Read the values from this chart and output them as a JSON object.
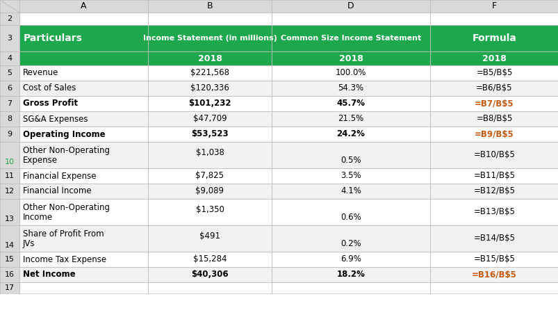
{
  "col_headers": [
    "A",
    "B",
    "D",
    "F"
  ],
  "col_header_row1": [
    "",
    "Income Statement (in millions)",
    "Common Size Income Statement",
    "Formula"
  ],
  "col_header_row2": [
    "Particulars",
    "2018",
    "2018",
    "2018"
  ],
  "rows": [
    {
      "row": 5,
      "col_a": "Revenue",
      "col_b": "$221,568",
      "col_d": "100.0%",
      "col_f": "=B5/B$5",
      "bold": false
    },
    {
      "row": 6,
      "col_a": "Cost of Sales",
      "col_b": "$120,336",
      "col_d": "54.3%",
      "col_f": "=B6/B$5",
      "bold": false
    },
    {
      "row": 7,
      "col_a": "Gross Profit",
      "col_b": "$101,232",
      "col_d": "45.7%",
      "col_f": "=B7/B$5",
      "bold": true
    },
    {
      "row": 8,
      "col_a": "SG&A Expenses",
      "col_b": "$47,709",
      "col_d": "21.5%",
      "col_f": "=B8/B$5",
      "bold": false
    },
    {
      "row": 9,
      "col_a": "Operating Income",
      "col_b": "$53,523",
      "col_d": "24.2%",
      "col_f": "=B9/B$5",
      "bold": true
    },
    {
      "row": 10,
      "col_a": "Other Non-Operating\nExpense",
      "col_b_top": "$1,038",
      "col_b_bot": "",
      "col_d": "0.5%",
      "col_f": "=B10/B$5",
      "bold": false,
      "multiline": true
    },
    {
      "row": 11,
      "col_a": "Financial Expense",
      "col_b": "$7,825",
      "col_d": "3.5%",
      "col_f": "=B11/B$5",
      "bold": false
    },
    {
      "row": 12,
      "col_a": "Financial Income",
      "col_b": "$9,089",
      "col_d": "4.1%",
      "col_f": "=B12/B$5",
      "bold": false
    },
    {
      "row": 13,
      "col_a": "Other Non-Operating\nIncome",
      "col_b_top": "$1,350",
      "col_b_bot": "",
      "col_d": "0.6%",
      "col_f": "=B13/B$5",
      "bold": false,
      "multiline": true
    },
    {
      "row": 14,
      "col_a": "Share of Profit From\nJVs",
      "col_b_top": "$491",
      "col_b_bot": "",
      "col_d": "0.2%",
      "col_f": "=B14/B$5",
      "bold": false,
      "multiline": true
    },
    {
      "row": 15,
      "col_a": "Income Tax Expense",
      "col_b": "$15,284",
      "col_d": "6.9%",
      "col_f": "=B15/B$5",
      "bold": false
    },
    {
      "row": 16,
      "col_a": "Net Income",
      "col_b": "$40,306",
      "col_d": "18.2%",
      "col_f": "=B16/B$5",
      "bold": true
    }
  ],
  "green_header_color": "#1EA84E",
  "green_header_text_color": "#FFFFFF",
  "grid_color": "#BFBFBF",
  "row_num_bg": "#D9D9D9",
  "orange_text": "#C55A11",
  "row_heights": {
    "row1": 18,
    "row2": 18,
    "row3": 38,
    "row4": 20,
    "data": [
      22,
      22,
      22,
      22,
      22,
      38,
      22,
      22,
      38,
      38,
      22,
      22
    ],
    "row17": 16
  },
  "col_widths": {
    "rownum": 28,
    "A": 185,
    "B": 178,
    "D": 228,
    "F": 185
  }
}
